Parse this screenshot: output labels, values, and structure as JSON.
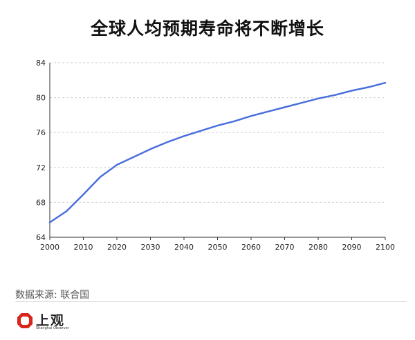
{
  "chart_data": {
    "type": "line",
    "title": "全球人均预期寿命将不断增长",
    "xlabel": "",
    "ylabel": "",
    "xlim": [
      2000,
      2100
    ],
    "ylim": [
      64,
      84
    ],
    "x_ticks": [
      "2000",
      "2010",
      "2020",
      "2030",
      "2040",
      "2050",
      "2060",
      "2070",
      "2080",
      "2090",
      "2100"
    ],
    "y_ticks": [
      "64",
      "68",
      "72",
      "76",
      "80",
      "84"
    ],
    "grid": true,
    "legend": "none",
    "line_color": "#4a6fdc",
    "series": [
      {
        "x": [
          2000,
          2005,
          2010,
          2015,
          2020,
          2025,
          2030,
          2035,
          2040,
          2045,
          2050,
          2055,
          2060,
          2065,
          2070,
          2075,
          2080,
          2085,
          2090,
          2095,
          2100
        ],
        "values": [
          65.7,
          67.0,
          68.9,
          70.9,
          72.3,
          73.2,
          74.1,
          74.9,
          75.6,
          76.2,
          76.8,
          77.3,
          77.9,
          78.4,
          78.9,
          79.4,
          79.9,
          80.3,
          80.8,
          81.2,
          81.7
        ]
      }
    ]
  },
  "source": "数据来源: 联合国",
  "logo": {
    "name": "上观",
    "subtitle": "Shanghai Observer",
    "color": "#d9261c"
  }
}
